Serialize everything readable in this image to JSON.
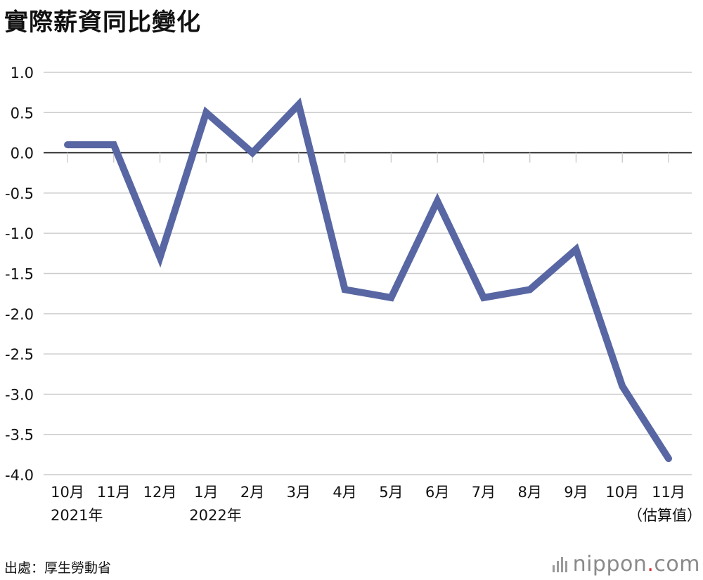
{
  "title": "實際薪資同比變化",
  "source": "出處：厚生勞動省",
  "logo": {
    "name": "nippon",
    "dot": ".",
    "domain": "com"
  },
  "colors": {
    "line": "#5867a3",
    "grid": "#cccccc",
    "zero": "#111111"
  },
  "chart_data": {
    "type": "line",
    "title": "實際薪資同比變化",
    "categories": [
      "10月",
      "11月",
      "12月",
      "1月",
      "2月",
      "3月",
      "4月",
      "5月",
      "6月",
      "7月",
      "8月",
      "9月",
      "10月",
      "11月"
    ],
    "category_sublabels": [
      "2021年",
      "",
      "",
      "2022年",
      "",
      "",
      "",
      "",
      "",
      "",
      "",
      "",
      "",
      "（估算值）"
    ],
    "series": [
      {
        "values": [
          0.1,
          0.1,
          -1.3,
          0.5,
          0.0,
          0.6,
          -1.7,
          -1.8,
          -0.6,
          -1.8,
          -1.7,
          -1.2,
          -2.9,
          -3.8
        ]
      }
    ],
    "ylim": [
      -4.0,
      1.0
    ],
    "yticks": [
      "1.0",
      "0.5",
      "0.0",
      "-0.5",
      "-1.0",
      "-1.5",
      "-2.0",
      "-2.5",
      "-3.0",
      "-3.5",
      "-4.0"
    ],
    "grid": true,
    "xlabel": "",
    "ylabel": ""
  }
}
